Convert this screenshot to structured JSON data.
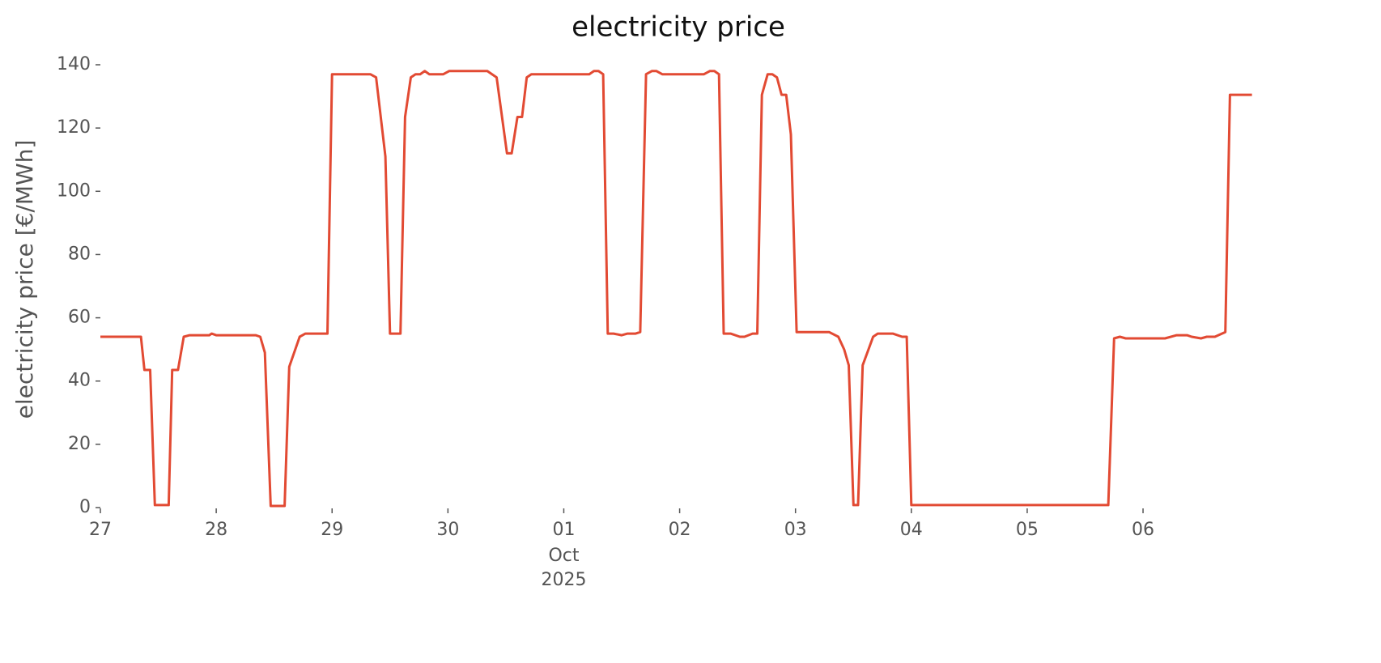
{
  "chart_data": {
    "type": "line",
    "title": "electricity price",
    "ylabel": "electricity price [€/MWh]",
    "color": "#e24a33",
    "x": [
      0,
      0.35,
      0.38,
      0.43,
      0.47,
      0.59,
      0.62,
      0.67,
      0.72,
      0.77,
      0.94,
      0.96,
      1.0,
      1.34,
      1.38,
      1.42,
      1.47,
      1.59,
      1.63,
      1.72,
      1.77,
      1.96,
      2.0,
      2.33,
      2.38,
      2.46,
      2.5,
      2.59,
      2.63,
      2.68,
      2.72,
      2.76,
      2.8,
      2.84,
      2.96,
      3.01,
      3.34,
      3.42,
      3.51,
      3.55,
      3.6,
      3.64,
      3.68,
      3.72,
      4.22,
      4.26,
      4.3,
      4.34,
      4.38,
      4.43,
      4.5,
      4.55,
      4.62,
      4.66,
      4.71,
      4.76,
      4.8,
      4.85,
      5.21,
      5.26,
      5.3,
      5.34,
      5.38,
      5.44,
      5.52,
      5.56,
      5.63,
      5.67,
      5.71,
      5.76,
      5.8,
      5.84,
      5.88,
      5.92,
      5.96,
      6.01,
      6.29,
      6.37,
      6.42,
      6.46,
      6.5,
      6.54,
      6.58,
      6.63,
      6.67,
      6.71,
      6.84,
      6.92,
      6.96,
      7.0,
      8.7,
      8.75,
      8.8,
      8.85,
      9.19,
      9.29,
      9.38,
      9.42,
      9.5,
      9.55,
      9.62,
      9.71,
      9.75,
      9.94
    ],
    "values": [
      54,
      54,
      43.5,
      43.5,
      0.8,
      0.8,
      43.5,
      43.5,
      54,
      54.5,
      54.5,
      55,
      54.5,
      54.5,
      54,
      49,
      0.5,
      0.5,
      44.5,
      54,
      55,
      55,
      137,
      137,
      136,
      111,
      55,
      55,
      123.5,
      136,
      137,
      137,
      138,
      137,
      137,
      138,
      138,
      136,
      112,
      112,
      123.5,
      123.5,
      136,
      137,
      137,
      138,
      138,
      137,
      55,
      55,
      54.5,
      55,
      55,
      55.5,
      137,
      138,
      138,
      137,
      137,
      138,
      138,
      137,
      55,
      55,
      54,
      54,
      55,
      55,
      130.5,
      137,
      137,
      136,
      130.5,
      130.5,
      118,
      55.5,
      55.5,
      54,
      50,
      45,
      0.8,
      0.8,
      45,
      50,
      54,
      55,
      55,
      54,
      54,
      0.8,
      0.8,
      53.5,
      54,
      53.5,
      53.5,
      54.5,
      54.5,
      54,
      53.5,
      54,
      54,
      55.5,
      130.5,
      130.5
    ],
    "xlim": [
      0,
      9.95
    ],
    "xticks": [
      {
        "value": 0,
        "label": "27"
      },
      {
        "value": 1,
        "label": "28"
      },
      {
        "value": 2,
        "label": "29"
      },
      {
        "value": 3,
        "label": "30"
      },
      {
        "value": 4,
        "label": "01",
        "sublabels": [
          "Oct",
          "2025"
        ]
      },
      {
        "value": 5,
        "label": "02"
      },
      {
        "value": 6,
        "label": "03"
      },
      {
        "value": 7,
        "label": "04"
      },
      {
        "value": 8,
        "label": "05"
      },
      {
        "value": 9,
        "label": "06"
      }
    ],
    "ylim": [
      0,
      140
    ],
    "yticks": [
      0,
      20,
      40,
      60,
      80,
      100,
      120,
      140
    ],
    "grid": false
  }
}
